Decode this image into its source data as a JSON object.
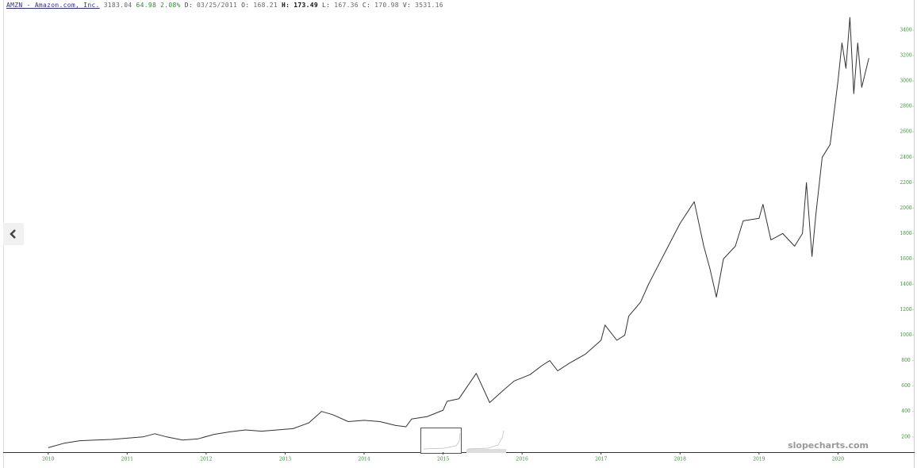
{
  "header": {
    "ticker": "AMZN - Amazon.com, Inc.",
    "last": "3183.04",
    "change": "64.98",
    "change_pct": "2.08%",
    "fields": [
      {
        "label": "D:",
        "value": "03/25/2011"
      },
      {
        "label": "O:",
        "value": "168.21"
      },
      {
        "label": "H:",
        "value": "173.49"
      },
      {
        "label": "L:",
        "value": "167.36"
      },
      {
        "label": "C:",
        "value": "170.98"
      },
      {
        "label": "V:",
        "value": "3531.16"
      }
    ]
  },
  "watermark": "slopecharts.com",
  "chart_data": {
    "type": "line",
    "color": "#333333",
    "x": [
      2010.0,
      2010.2,
      2010.4,
      2010.6,
      2010.8,
      2011.0,
      2011.2,
      2011.35,
      2011.5,
      2011.7,
      2011.9,
      2012.1,
      2012.3,
      2012.5,
      2012.7,
      2012.9,
      2013.1,
      2013.3,
      2013.46,
      2013.6,
      2013.8,
      2014.0,
      2014.2,
      2014.4,
      2014.53,
      2014.6,
      2014.8,
      2015.0,
      2015.05,
      2015.2,
      2015.42,
      2015.59,
      2015.75,
      2015.9,
      2016.1,
      2016.25,
      2016.35,
      2016.45,
      2016.6,
      2016.8,
      2017.0,
      2017.05,
      2017.2,
      2017.3,
      2017.35,
      2017.5,
      2017.6,
      2017.7,
      2017.85,
      2018.0,
      2018.18,
      2018.3,
      2018.38,
      2018.46,
      2018.55,
      2018.7,
      2018.8,
      2019.0,
      2019.05,
      2019.15,
      2019.3,
      2019.45,
      2019.55,
      2019.6,
      2019.67,
      2019.72,
      2019.8,
      2019.9,
      2020.0,
      2020.05,
      2020.1,
      2020.15,
      2020.2,
      2020.25,
      2020.3,
      2020.39
    ],
    "values": [
      115,
      150,
      170,
      175,
      180,
      190,
      200,
      225,
      200,
      175,
      185,
      220,
      240,
      255,
      245,
      255,
      265,
      310,
      400,
      375,
      320,
      330,
      320,
      290,
      280,
      340,
      360,
      410,
      480,
      500,
      700,
      470,
      560,
      640,
      690,
      760,
      800,
      720,
      780,
      850,
      960,
      1080,
      960,
      1000,
      1150,
      1260,
      1400,
      1520,
      1700,
      1880,
      2050,
      1700,
      1520,
      1300,
      1600,
      1700,
      1900,
      1920,
      2030,
      1750,
      1800,
      1700,
      1800,
      2200,
      1620,
      1950,
      2400,
      2500,
      3000,
      3300,
      3100,
      3500,
      2900,
      3300,
      2950,
      3180
    ],
    "xlim": [
      2009.43,
      2020.97
    ],
    "ylim": [
      80,
      3550
    ],
    "xticks": [
      2010,
      2011,
      2012,
      2013,
      2014,
      2015,
      2016,
      2017,
      2018,
      2019,
      2020
    ],
    "yticks": [
      200,
      400,
      600,
      800,
      1000,
      1200,
      1400,
      1600,
      1800,
      2000,
      2200,
      2400,
      2600,
      2800,
      3000,
      3200,
      3400
    ]
  }
}
